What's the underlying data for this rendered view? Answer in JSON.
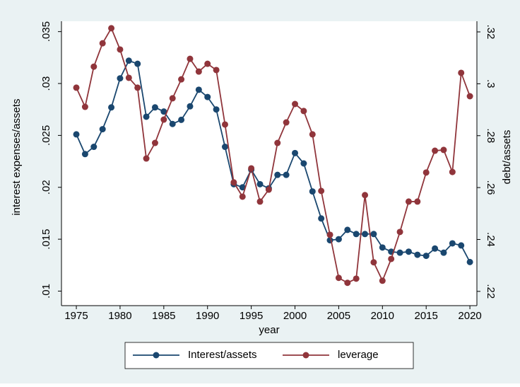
{
  "chart_data": {
    "type": "line",
    "xlabel": "year",
    "ylabel": "interest expenses/assets",
    "y2label": "debt/assets",
    "x": [
      1975,
      1976,
      1977,
      1978,
      1979,
      1980,
      1981,
      1982,
      1983,
      1984,
      1985,
      1986,
      1987,
      1988,
      1989,
      1990,
      1991,
      1992,
      1993,
      1994,
      1995,
      1996,
      1997,
      1998,
      1999,
      2000,
      2001,
      2002,
      2003,
      2004,
      2005,
      2006,
      2007,
      2008,
      2009,
      2010,
      2011,
      2012,
      2013,
      2014,
      2015,
      2016,
      2017,
      2018,
      2019,
      2020
    ],
    "series": [
      {
        "name": "Interest/assets",
        "color": "#1a476f",
        "axis": "y",
        "values": [
          0.0251,
          0.0232,
          0.0239,
          0.0256,
          0.0277,
          0.0305,
          0.0322,
          0.0319,
          0.0268,
          0.0277,
          0.0273,
          0.0261,
          0.0265,
          0.0278,
          0.0294,
          0.0287,
          0.0275,
          0.0239,
          0.0203,
          0.02,
          0.0217,
          0.0203,
          0.0199,
          0.0212,
          0.0212,
          0.0233,
          0.0223,
          0.0196,
          0.017,
          0.0149,
          0.015,
          0.0159,
          0.0155,
          0.0155,
          0.0155,
          0.0142,
          0.0138,
          0.0137,
          0.0138,
          0.0135,
          0.0134,
          0.0141,
          0.0137,
          0.0146,
          0.0144,
          0.0128
        ]
      },
      {
        "name": "leverage",
        "color": "#90353b",
        "axis": "y2",
        "values": [
          0.2985,
          0.2911,
          0.3066,
          0.3156,
          0.3214,
          0.3132,
          0.3023,
          0.2985,
          0.2712,
          0.2772,
          0.2862,
          0.2944,
          0.3017,
          0.3096,
          0.3047,
          0.3077,
          0.3053,
          0.2843,
          0.262,
          0.2565,
          0.2674,
          0.2546,
          0.2592,
          0.2772,
          0.2851,
          0.2922,
          0.2895,
          0.2805,
          0.2587,
          0.2418,
          0.2252,
          0.2233,
          0.2249,
          0.2571,
          0.2312,
          0.2241,
          0.2325,
          0.2429,
          0.2546,
          0.2546,
          0.2658,
          0.2742,
          0.2745,
          0.266,
          0.3042,
          0.2952
        ]
      }
    ],
    "xlim": [
      1973.3,
      2020.8
    ],
    "xticks": [
      1975,
      1980,
      1985,
      1990,
      1995,
      2000,
      2005,
      2010,
      2015,
      2020
    ],
    "ylim": [
      0.0086,
      0.036
    ],
    "yticks": [
      {
        "value": 0.01,
        "label": ".01"
      },
      {
        "value": 0.015,
        "label": ".015"
      },
      {
        "value": 0.02,
        "label": ".02"
      },
      {
        "value": 0.025,
        "label": ".025"
      },
      {
        "value": 0.03,
        "label": ".03"
      },
      {
        "value": 0.035,
        "label": ".035"
      }
    ],
    "y2lim": [
      0.2145,
      0.3241
    ],
    "y2ticks": [
      {
        "value": 0.22,
        "label": ".22"
      },
      {
        "value": 0.24,
        "label": ".24"
      },
      {
        "value": 0.26,
        "label": ".26"
      },
      {
        "value": 0.28,
        "label": ".28"
      },
      {
        "value": 0.3,
        "label": ".3"
      },
      {
        "value": 0.32,
        "label": ".32"
      }
    ],
    "grid": false,
    "legend": "bottom"
  }
}
